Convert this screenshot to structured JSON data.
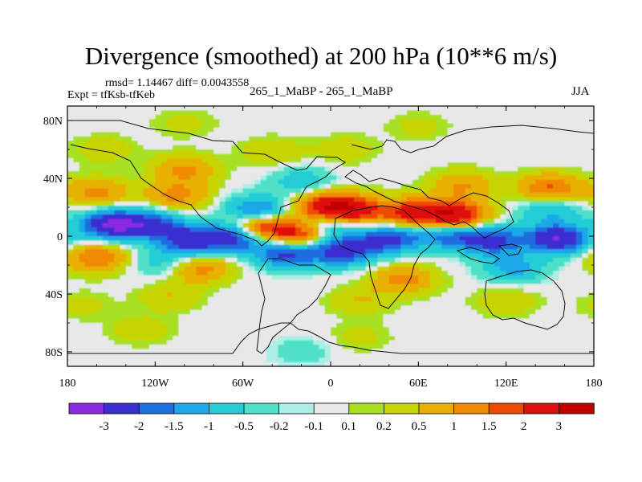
{
  "chart_data": {
    "type": "heatmap",
    "title": "Divergence (smoothed) at 200 hPa (10**6 m/s)",
    "stats_text": "rmsd= 1.14467 diff= 0.0043558",
    "left_label": "Expt = tfKsb-tfKeb",
    "center_label": "265_1_MaBP - 265_1_MaBP",
    "right_label": "JJA",
    "x_ticks": [
      "180",
      "120W",
      "60W",
      "0",
      "60E",
      "120E",
      "180"
    ],
    "y_ticks": [
      "80N",
      "40N",
      "0",
      "40S",
      "80S"
    ],
    "x_range": [
      -180,
      180
    ],
    "y_range": [
      -90,
      90
    ],
    "levels": [
      -3,
      -2,
      -1.5,
      -1,
      -0.5,
      -0.2,
      -0.1,
      0.1,
      0.2,
      0.5,
      1,
      1.5,
      2,
      3
    ],
    "level_labels": [
      "-3",
      "-2",
      "-1.5",
      "-1",
      "-0.5",
      "-0.2",
      "-0.1",
      "0.1",
      "0.2",
      "0.5",
      "1",
      "1.5",
      "2",
      "3"
    ],
    "colors": [
      "#8a2be2",
      "#3a2fd0",
      "#1e6ee0",
      "#1ea8e8",
      "#24cdd6",
      "#4fe0c8",
      "#aaeee6",
      "#e8e8e8",
      "#a8e020",
      "#c8d400",
      "#e8b000",
      "#f08a00",
      "#f04a00",
      "#e01010",
      "#c00000"
    ],
    "features": [
      {
        "lon": -150,
        "lat": 8,
        "value": -3
      },
      {
        "lon": -122,
        "lat": 8,
        "value": -2
      },
      {
        "lon": -95,
        "lat": -3,
        "value": -2.5
      },
      {
        "lon": -62,
        "lat": 0,
        "value": -3.1
      },
      {
        "lon": -30,
        "lat": -12,
        "value": -2.2
      },
      {
        "lon": 8,
        "lat": -10,
        "value": -2.5
      },
      {
        "lon": -5,
        "lat": 8,
        "value": -1.8
      },
      {
        "lon": 40,
        "lat": -2,
        "value": -2.2
      },
      {
        "lon": 80,
        "lat": 1,
        "value": -1.8
      },
      {
        "lon": 110,
        "lat": -3,
        "value": -2.3
      },
      {
        "lon": 155,
        "lat": -2,
        "value": -3
      },
      {
        "lon": 150,
        "lat": 18,
        "value": -1
      },
      {
        "lon": 125,
        "lat": -22,
        "value": -1.2
      },
      {
        "lon": -50,
        "lat": 18,
        "value": -1.8
      },
      {
        "lon": -115,
        "lat": -18,
        "value": -0.8
      },
      {
        "lon": -20,
        "lat": 38,
        "value": -0.8
      },
      {
        "lon": -160,
        "lat": 30,
        "value": 1.2
      },
      {
        "lon": -105,
        "lat": 28,
        "value": 1.2
      },
      {
        "lon": -50,
        "lat": 5,
        "value": 3
      },
      {
        "lon": -20,
        "lat": 2,
        "value": 2.5
      },
      {
        "lon": -5,
        "lat": 20,
        "value": 2.3
      },
      {
        "lon": 15,
        "lat": 18,
        "value": 2.4
      },
      {
        "lon": 55,
        "lat": 16,
        "value": 2.2
      },
      {
        "lon": 85,
        "lat": 14,
        "value": 3
      },
      {
        "lon": 150,
        "lat": 33,
        "value": 1.6
      },
      {
        "lon": 90,
        "lat": 35,
        "value": 1
      },
      {
        "lon": -160,
        "lat": -15,
        "value": 1.5
      },
      {
        "lon": -90,
        "lat": -22,
        "value": 1.3
      },
      {
        "lon": 50,
        "lat": -30,
        "value": 1.2
      },
      {
        "lon": -100,
        "lat": 46,
        "value": 1.1
      },
      {
        "lon": -155,
        "lat": 60,
        "value": 0.4
      },
      {
        "lon": -40,
        "lat": 58,
        "value": 0.5
      },
      {
        "lon": 10,
        "lat": 60,
        "value": 0.4
      },
      {
        "lon": -110,
        "lat": -42,
        "value": 0.5
      },
      {
        "lon": 20,
        "lat": -45,
        "value": 0.5
      },
      {
        "lon": 120,
        "lat": -45,
        "value": 0.5
      },
      {
        "lon": -170,
        "lat": -48,
        "value": 0.3
      },
      {
        "lon": -20,
        "lat": -80,
        "value": -0.4
      },
      {
        "lon": -130,
        "lat": -65,
        "value": 0.4
      },
      {
        "lon": 20,
        "lat": -70,
        "value": 0.3
      },
      {
        "lon": -100,
        "lat": 78,
        "value": 0.3
      },
      {
        "lon": 60,
        "lat": 76,
        "value": 0.3
      }
    ]
  }
}
